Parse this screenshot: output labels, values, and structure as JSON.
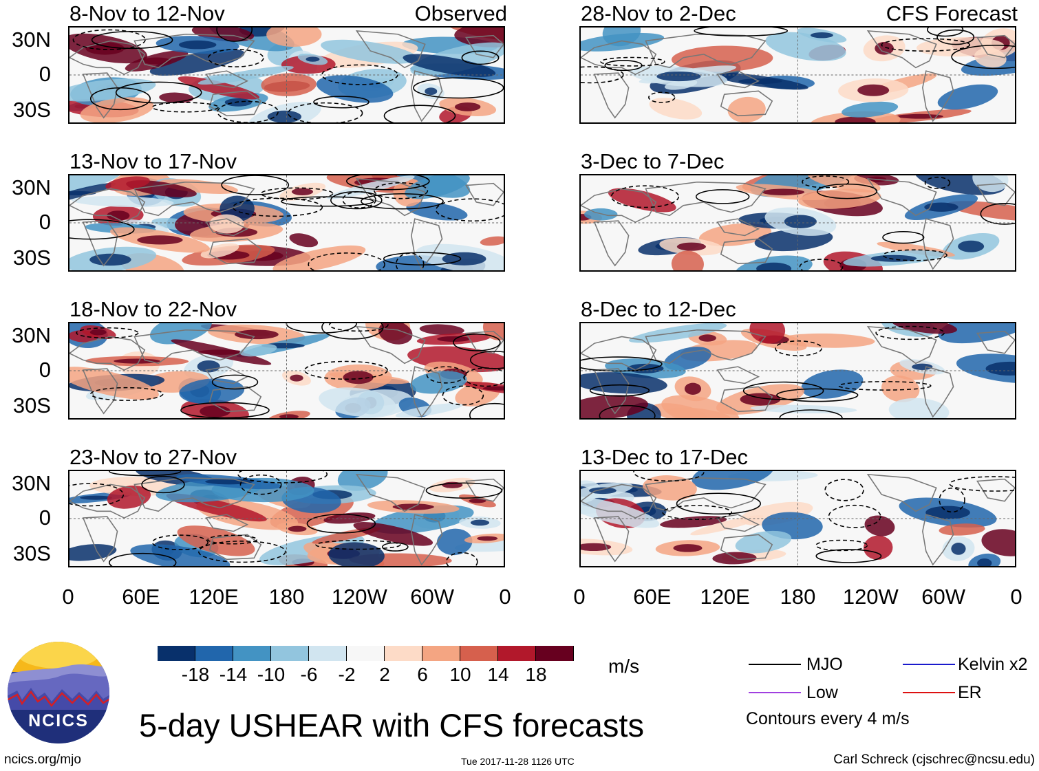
{
  "panels": [
    {
      "period": "8-Nov to 12-Nov",
      "label": "Observed",
      "col": 0,
      "row": 0
    },
    {
      "period": "13-Nov to 17-Nov",
      "label": "",
      "col": 0,
      "row": 1
    },
    {
      "period": "18-Nov to 22-Nov",
      "label": "",
      "col": 0,
      "row": 2
    },
    {
      "period": "23-Nov to 27-Nov",
      "label": "",
      "col": 0,
      "row": 3
    },
    {
      "period": "28-Nov to 2-Dec",
      "label": "CFS Forecast",
      "col": 1,
      "row": 0
    },
    {
      "period": "3-Dec to 7-Dec",
      "label": "",
      "col": 1,
      "row": 1
    },
    {
      "period": "8-Dec to 12-Dec",
      "label": "",
      "col": 1,
      "row": 2
    },
    {
      "period": "13-Dec to 17-Dec",
      "label": "",
      "col": 1,
      "row": 3
    }
  ],
  "y_ticks": [
    "30N",
    "0",
    "30S"
  ],
  "x_ticks": [
    "0",
    "60E",
    "120E",
    "180",
    "120W",
    "60W",
    "0"
  ],
  "colorbar": {
    "labels": [
      "-18",
      "-14",
      "-10",
      "-6",
      "-2",
      "2",
      "6",
      "10",
      "14",
      "18"
    ],
    "colors": [
      "#08306b",
      "#2166ac",
      "#4393c3",
      "#92c5de",
      "#d1e5f0",
      "#f7f7f7",
      "#fddbc7",
      "#f4a582",
      "#d6604d",
      "#b2182b",
      "#67001f"
    ],
    "units": "m/s"
  },
  "legend": {
    "mjo": "MJO",
    "kelvin": "Kelvin x2",
    "low": "Low",
    "er": "ER",
    "contours": "Contours every 4 m/s",
    "colors": {
      "mjo": "#000000",
      "kelvin": "#1a1acc",
      "low": "#a040e0",
      "er": "#dd1111"
    }
  },
  "logo": {
    "text": "NCICS"
  },
  "title": "5-day USHEAR with CFS forecasts",
  "footer": {
    "left": "ncics.org/mjo",
    "center": "Tue 2017-11-28 1126 UTC",
    "right": "Carl Schreck (cjschrec@ncsu.edu)"
  }
}
